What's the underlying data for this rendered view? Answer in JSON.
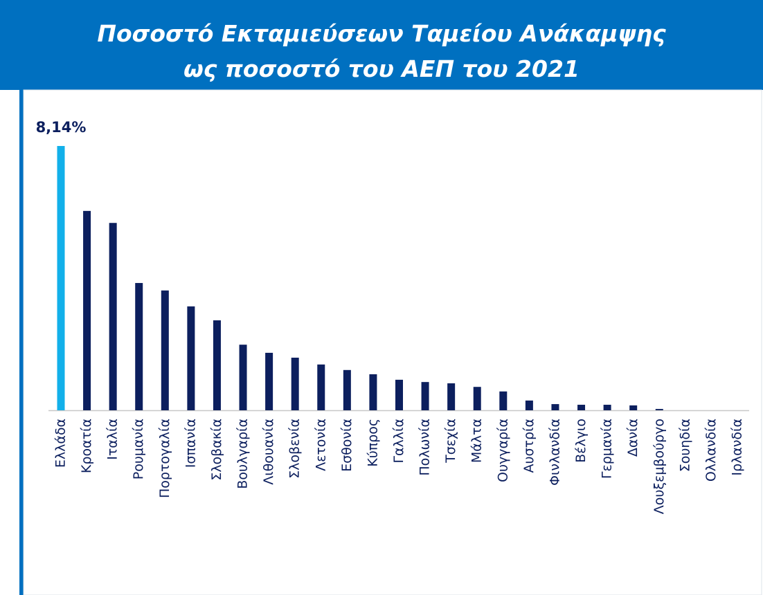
{
  "chart_data": {
    "type": "bar",
    "title": [
      "Ποσοστό Εκταμιεύσεων Ταμείου Ανάκαμψης",
      "ως ποσοστό του ΑΕΠ του 2021"
    ],
    "categories": [
      "Ελλάδα",
      "Κροατία",
      "Ιταλία",
      "Ρουμανία",
      "Πορτογαλία",
      "Ισπανία",
      "Σλοβακία",
      "Βουλγαρία",
      "Λιθουανία",
      "Σλοβενία",
      "Λετονία",
      "Εσθονία",
      "Κύπρος",
      "Γαλλία",
      "Πολωνία",
      "Τσεχία",
      "Μάλτα",
      "Ουγγαρία",
      "Αυστρία",
      "Φινλανδία",
      "Βέλγιο",
      "Γερμανία",
      "Δανία",
      "Λουξεμβούργο",
      "Σουηδία",
      "Ολλανδία",
      "Ιρλανδία"
    ],
    "values": [
      8.14,
      6.14,
      5.77,
      3.92,
      3.69,
      3.2,
      2.77,
      2.02,
      1.77,
      1.62,
      1.41,
      1.24,
      1.11,
      0.94,
      0.87,
      0.83,
      0.72,
      0.58,
      0.3,
      0.19,
      0.17,
      0.17,
      0.15,
      0.04,
      0,
      0,
      0
    ],
    "value_labels": [
      "8,14%",
      null,
      null,
      null,
      null,
      null,
      null,
      null,
      null,
      null,
      null,
      null,
      null,
      null,
      null,
      null,
      null,
      null,
      null,
      null,
      null,
      null,
      null,
      null,
      null,
      null,
      null
    ],
    "colors": [
      "#12b0ea",
      "#0c1f5e",
      "#0c1f5e",
      "#0c1f5e",
      "#0c1f5e",
      "#0c1f5e",
      "#0c1f5e",
      "#0c1f5e",
      "#0c1f5e",
      "#0c1f5e",
      "#0c1f5e",
      "#0c1f5e",
      "#0c1f5e",
      "#0c1f5e",
      "#0c1f5e",
      "#0c1f5e",
      "#0c1f5e",
      "#0c1f5e",
      "#0c1f5e",
      "#0c1f5e",
      "#0c1f5e",
      "#0c1f5e",
      "#0c1f5e",
      "#0c1f5e",
      "#0c1f5e",
      "#0c1f5e",
      "#0c1f5e"
    ]
  }
}
